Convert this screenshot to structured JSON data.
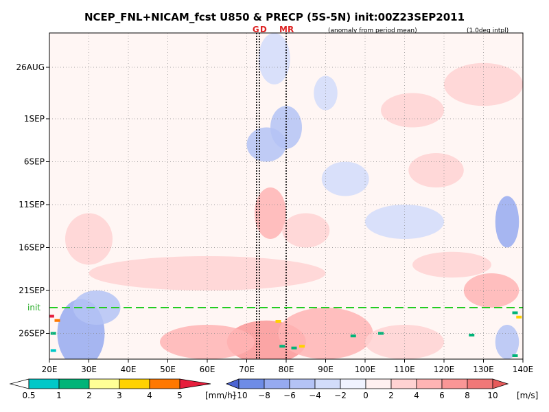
{
  "chart_data": {
    "type": "heatmap",
    "title": "NCEP_FNL+NICAM_fcst U850 & PRECP (5S-5N) init:00Z23SEP2011",
    "subtitle_left": "(anomaly from period mean)",
    "subtitle_right": "(1.0deg intpl)",
    "x_axis": {
      "min": 20,
      "max": 140,
      "ticks": [
        20,
        30,
        40,
        50,
        60,
        70,
        80,
        90,
        100,
        110,
        120,
        130,
        140
      ],
      "tick_labels": [
        "20E",
        "30E",
        "40E",
        "50E",
        "60E",
        "70E",
        "80E",
        "90E",
        "100E",
        "110E",
        "120E",
        "130E",
        "140E"
      ]
    },
    "y_axis": {
      "start": "2011-08-22",
      "end": "2011-09-29",
      "unit": "date",
      "ticks": [
        "2011-08-26",
        "2011-09-01",
        "2011-09-06",
        "2011-09-11",
        "2011-09-16",
        "2011-09-21",
        "2011-09-26"
      ],
      "tick_labels": [
        "26AUG",
        "1SEP",
        "6SEP",
        "11SEP",
        "16SEP",
        "21SEP",
        "26SEP"
      ]
    },
    "grid": true,
    "markers": [
      {
        "label": "G",
        "lon": 72.5
      },
      {
        "label": "D",
        "lon": 73.2
      },
      {
        "label": "M",
        "lon": 80.0
      },
      {
        "label": "R",
        "lon": 80.0
      }
    ],
    "init": {
      "label": "init",
      "date": "2011-09-23"
    },
    "features": [
      {
        "lon": 77,
        "date": "2011-08-25",
        "u": -4,
        "w": 4,
        "h": 3
      },
      {
        "lon": 90,
        "date": "2011-08-29",
        "u": -3,
        "w": 3,
        "h": 2
      },
      {
        "lon": 80,
        "date": "2011-09-02",
        "u": -6,
        "w": 4,
        "h": 2.5
      },
      {
        "lon": 75,
        "date": "2011-09-04",
        "u": -5,
        "w": 5,
        "h": 2
      },
      {
        "lon": 112,
        "date": "2011-08-31",
        "u": 3,
        "w": 8,
        "h": 2
      },
      {
        "lon": 130,
        "date": "2011-08-28",
        "u": 2,
        "w": 10,
        "h": 2.5
      },
      {
        "lon": 118,
        "date": "2011-09-07",
        "u": 3,
        "w": 7,
        "h": 2
      },
      {
        "lon": 95,
        "date": "2011-09-08",
        "u": -3,
        "w": 6,
        "h": 2
      },
      {
        "lon": 76,
        "date": "2011-09-12",
        "u": 4,
        "w": 4,
        "h": 3
      },
      {
        "lon": 85,
        "date": "2011-09-14",
        "u": 3,
        "w": 6,
        "h": 2
      },
      {
        "lon": 30,
        "date": "2011-09-15",
        "u": 3,
        "w": 6,
        "h": 3
      },
      {
        "lon": 110,
        "date": "2011-09-13",
        "u": -3,
        "w": 10,
        "h": 2
      },
      {
        "lon": 136,
        "date": "2011-09-13",
        "u": -7,
        "w": 3,
        "h": 3
      },
      {
        "lon": 60,
        "date": "2011-09-19",
        "u": 2,
        "w": 30,
        "h": 2
      },
      {
        "lon": 122,
        "date": "2011-09-18",
        "u": 3,
        "w": 10,
        "h": 1.5
      },
      {
        "lon": 132,
        "date": "2011-09-21",
        "u": 4,
        "w": 7,
        "h": 2
      },
      {
        "lon": 28,
        "date": "2011-09-26",
        "u": -8,
        "w": 6,
        "h": 4
      },
      {
        "lon": 32,
        "date": "2011-09-23",
        "u": -6,
        "w": 6,
        "h": 2
      },
      {
        "lon": 75,
        "date": "2011-09-27",
        "u": 7,
        "w": 10,
        "h": 2.5
      },
      {
        "lon": 90,
        "date": "2011-09-26",
        "u": 5,
        "w": 12,
        "h": 3
      },
      {
        "lon": 60,
        "date": "2011-09-27",
        "u": 4,
        "w": 12,
        "h": 2
      },
      {
        "lon": 110,
        "date": "2011-09-27",
        "u": 2,
        "w": 10,
        "h": 2
      },
      {
        "lon": 136,
        "date": "2011-09-27",
        "u": -5,
        "w": 3,
        "h": 2
      }
    ],
    "precip_marks": [
      {
        "lon": 20.5,
        "date": "2011-09-24",
        "mm": 5
      },
      {
        "lon": 22,
        "date": "2011-09-24.5",
        "mm": 4
      },
      {
        "lon": 21,
        "date": "2011-09-26",
        "mm": 1
      },
      {
        "lon": 21,
        "date": "2011-09-28",
        "mm": 0.5
      },
      {
        "lon": 78,
        "date": "2011-09-24.6",
        "mm": 3
      },
      {
        "lon": 79,
        "date": "2011-09-27.5",
        "mm": 1
      },
      {
        "lon": 82,
        "date": "2011-09-27.7",
        "mm": 1
      },
      {
        "lon": 84,
        "date": "2011-09-27.5",
        "mm": 3
      },
      {
        "lon": 97,
        "date": "2011-09-26.3",
        "mm": 1
      },
      {
        "lon": 104,
        "date": "2011-09-26",
        "mm": 1
      },
      {
        "lon": 127,
        "date": "2011-09-26.2",
        "mm": 1
      },
      {
        "lon": 138,
        "date": "2011-09-23.6",
        "mm": 1
      },
      {
        "lon": 139,
        "date": "2011-09-24.1",
        "mm": 3
      },
      {
        "lon": 138,
        "date": "2011-09-28.6",
        "mm": 1
      }
    ]
  },
  "precip_legend": {
    "unit": "[mm/h]",
    "tick_labels": [
      "0.5",
      "1",
      "2",
      "3",
      "4",
      "5"
    ],
    "colors": [
      "#ffffff",
      "#00c8c8",
      "#00b478",
      "#ffff96",
      "#ffd200",
      "#ff7800",
      "#e61e3c"
    ]
  },
  "wind_legend": {
    "unit": "[m/s]",
    "tick_labels": [
      "−10",
      "−8",
      "−6",
      "−4",
      "−2",
      "0",
      "2",
      "4",
      "6",
      "8",
      "10"
    ],
    "colors": [
      "#4b64d2",
      "#6e8ce6",
      "#96aaf0",
      "#b4c3f5",
      "#d2dcfa",
      "#f0f3ff",
      "#fff0f0",
      "#ffd2d2",
      "#ffb4b4",
      "#fa9696",
      "#f07878",
      "#e65a5a"
    ]
  }
}
